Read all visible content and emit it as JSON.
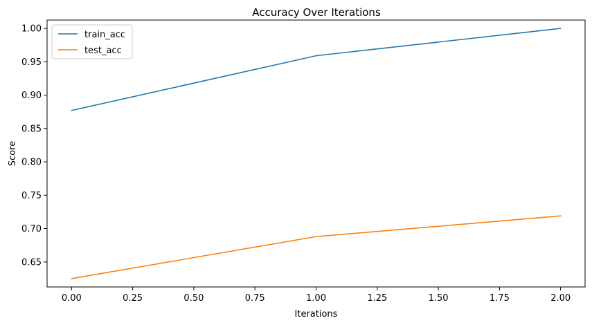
{
  "chart_data": {
    "type": "line",
    "title": "Accuracy Over Iterations",
    "xlabel": "Iterations",
    "ylabel": "Score",
    "x": [
      0,
      1,
      2
    ],
    "xlim": [
      -0.1,
      2.1
    ],
    "ylim": [
      0.6125,
      1.0125
    ],
    "xticks": [
      0.0,
      0.25,
      0.5,
      0.75,
      1.0,
      1.25,
      1.5,
      1.75,
      2.0
    ],
    "xtick_labels": [
      "0.00",
      "0.25",
      "0.50",
      "0.75",
      "1.00",
      "1.25",
      "1.50",
      "1.75",
      "2.00"
    ],
    "yticks": [
      0.65,
      0.7,
      0.75,
      0.8,
      0.85,
      0.9,
      0.95,
      1.0
    ],
    "ytick_labels": [
      "0.65",
      "0.70",
      "0.75",
      "0.80",
      "0.85",
      "0.90",
      "0.95",
      "1.00"
    ],
    "grid": false,
    "legend_position": "top-left",
    "series": [
      {
        "name": "train_acc",
        "color": "#1f77b4",
        "values": [
          0.877,
          0.959,
          1.0
        ]
      },
      {
        "name": "test_acc",
        "color": "#ff7f0e",
        "values": [
          0.625,
          0.688,
          0.719
        ]
      }
    ]
  }
}
